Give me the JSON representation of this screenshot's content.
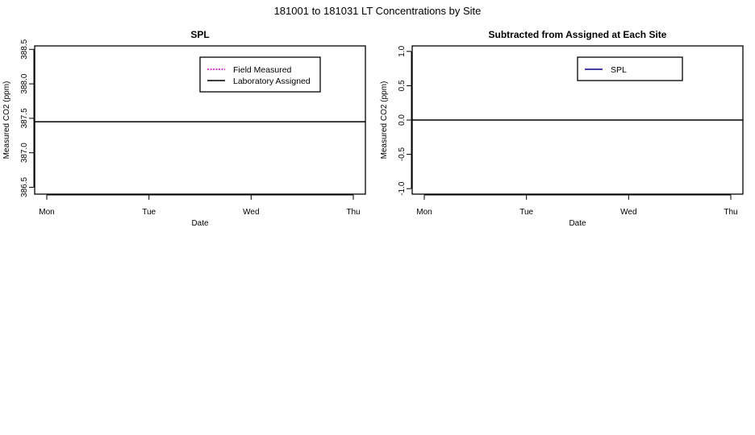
{
  "title": "181001  to  181031 LT Concentrations by Site",
  "chart_data": [
    {
      "type": "line",
      "title": "SPL",
      "xlabel": "Date",
      "ylabel": "Measured CO2 (ppm)",
      "x_ticks": [
        "Mon",
        "Tue",
        "Wed",
        "Thu"
      ],
      "ylim": [
        386.4,
        388.55
      ],
      "y_ticks": [
        386.5,
        387.0,
        387.5,
        388.0,
        388.5
      ],
      "y_tick_labels": [
        "386.5",
        "387.0",
        "387.5",
        "388.0",
        "388.5"
      ],
      "legend": {
        "position": "top-right",
        "entries": [
          {
            "label": "Field Measured",
            "color": "#cc00cc",
            "style": "dashed"
          },
          {
            "label": "Laboratory Assigned",
            "color": "#000000",
            "style": "solid"
          }
        ]
      },
      "hlines": [
        {
          "y": 387.45,
          "color": "#000000",
          "label": "Laboratory Assigned"
        }
      ],
      "series": [
        {
          "name": "Field Measured",
          "color": "#cc00cc",
          "values": []
        }
      ]
    },
    {
      "type": "line",
      "title": "Subtracted from Assigned at Each Site",
      "xlabel": "Date",
      "ylabel": "Measured CO2 (ppm)",
      "x_ticks": [
        "Mon",
        "Tue",
        "Wed",
        "Thu"
      ],
      "ylim": [
        -1.08,
        1.08
      ],
      "y_ticks": [
        -1.0,
        -0.5,
        0.0,
        0.5,
        1.0
      ],
      "y_tick_labels": [
        "-1.0",
        "-0.5",
        "0.0",
        "0.5",
        "1.0"
      ],
      "legend": {
        "position": "top-right",
        "entries": [
          {
            "label": "SPL",
            "color": "#00008b",
            "style": "solid"
          }
        ]
      },
      "hlines": [
        {
          "y": 0.0,
          "color": "#000000",
          "label": ""
        }
      ],
      "series": [
        {
          "name": "SPL",
          "color": "#00008b",
          "values": []
        }
      ]
    }
  ]
}
